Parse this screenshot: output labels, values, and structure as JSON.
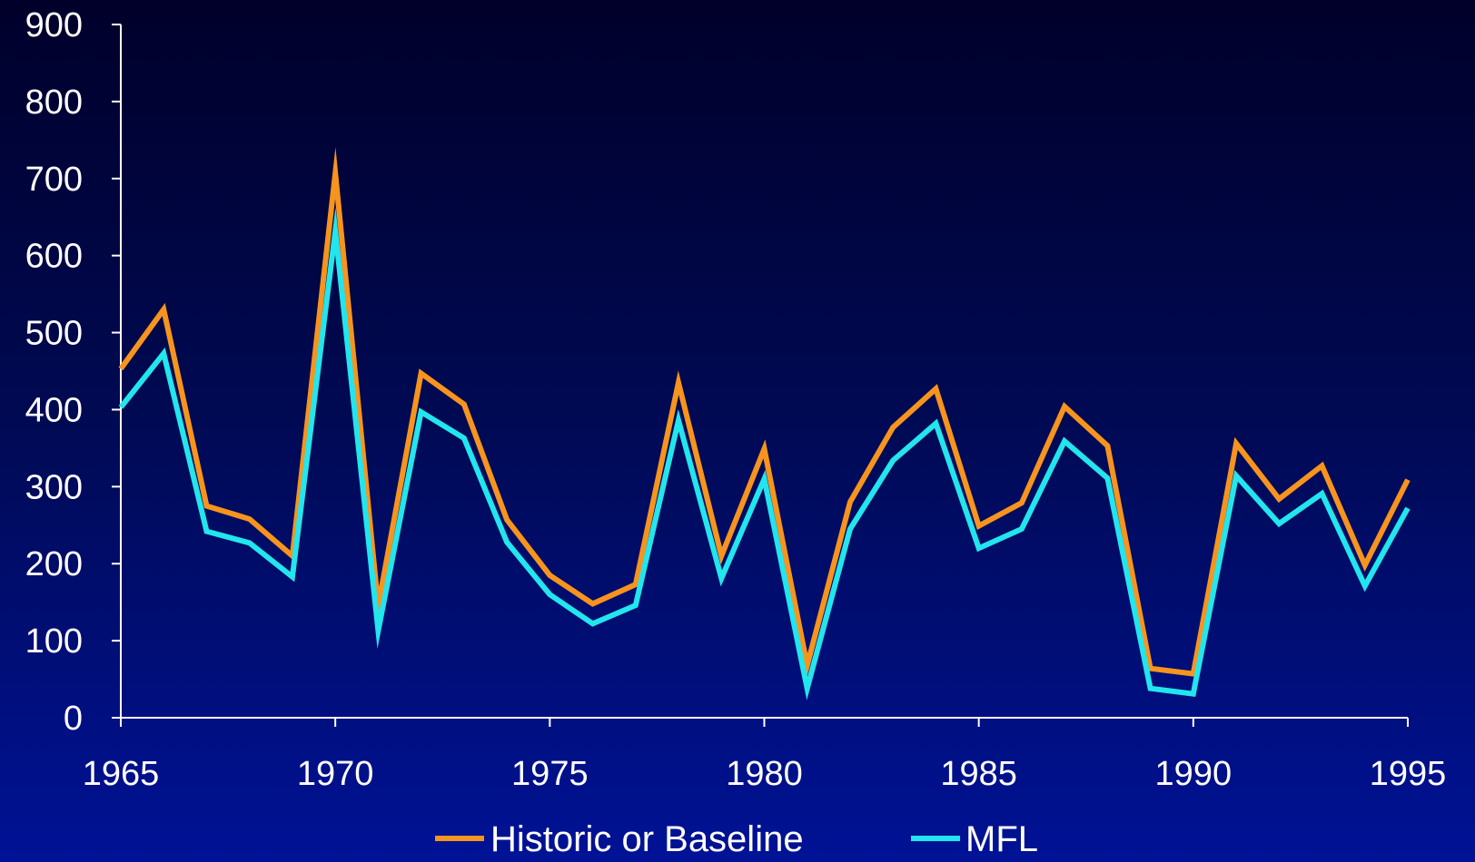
{
  "chart_data": {
    "type": "line",
    "title": "",
    "xlabel": "",
    "ylabel": "",
    "xlim": [
      1965,
      1995
    ],
    "ylim": [
      0,
      900
    ],
    "x_ticks": [
      "1965",
      "1970",
      "1975",
      "1980",
      "1985",
      "1990",
      "1995"
    ],
    "y_ticks": [
      "0",
      "100",
      "200",
      "300",
      "400",
      "500",
      "600",
      "700",
      "800",
      "900"
    ],
    "grid": false,
    "legend_position": "bottom",
    "x": [
      1965,
      1966,
      1967,
      1968,
      1969,
      1970,
      1971,
      1972,
      1973,
      1974,
      1975,
      1976,
      1977,
      1978,
      1979,
      1980,
      1981,
      1982,
      1983,
      1984,
      1985,
      1986,
      1987,
      1988,
      1989,
      1990,
      1991,
      1992,
      1993,
      1994,
      1995
    ],
    "series": [
      {
        "name": "Historic or Baseline",
        "color": "#f7941d",
        "values": [
          453,
          530,
          275,
          258,
          210,
          707,
          145,
          447,
          407,
          257,
          185,
          148,
          173,
          435,
          210,
          349,
          68,
          280,
          377,
          427,
          249,
          279,
          404,
          353,
          64,
          57,
          356,
          284,
          327,
          198,
          309
        ]
      },
      {
        "name": "MFL",
        "color": "#22e5ee",
        "values": [
          403,
          473,
          242,
          227,
          183,
          632,
          113,
          397,
          363,
          228,
          160,
          122,
          146,
          386,
          181,
          310,
          38,
          245,
          334,
          382,
          220,
          245,
          359,
          311,
          38,
          31,
          314,
          252,
          291,
          171,
          272
        ]
      }
    ]
  }
}
